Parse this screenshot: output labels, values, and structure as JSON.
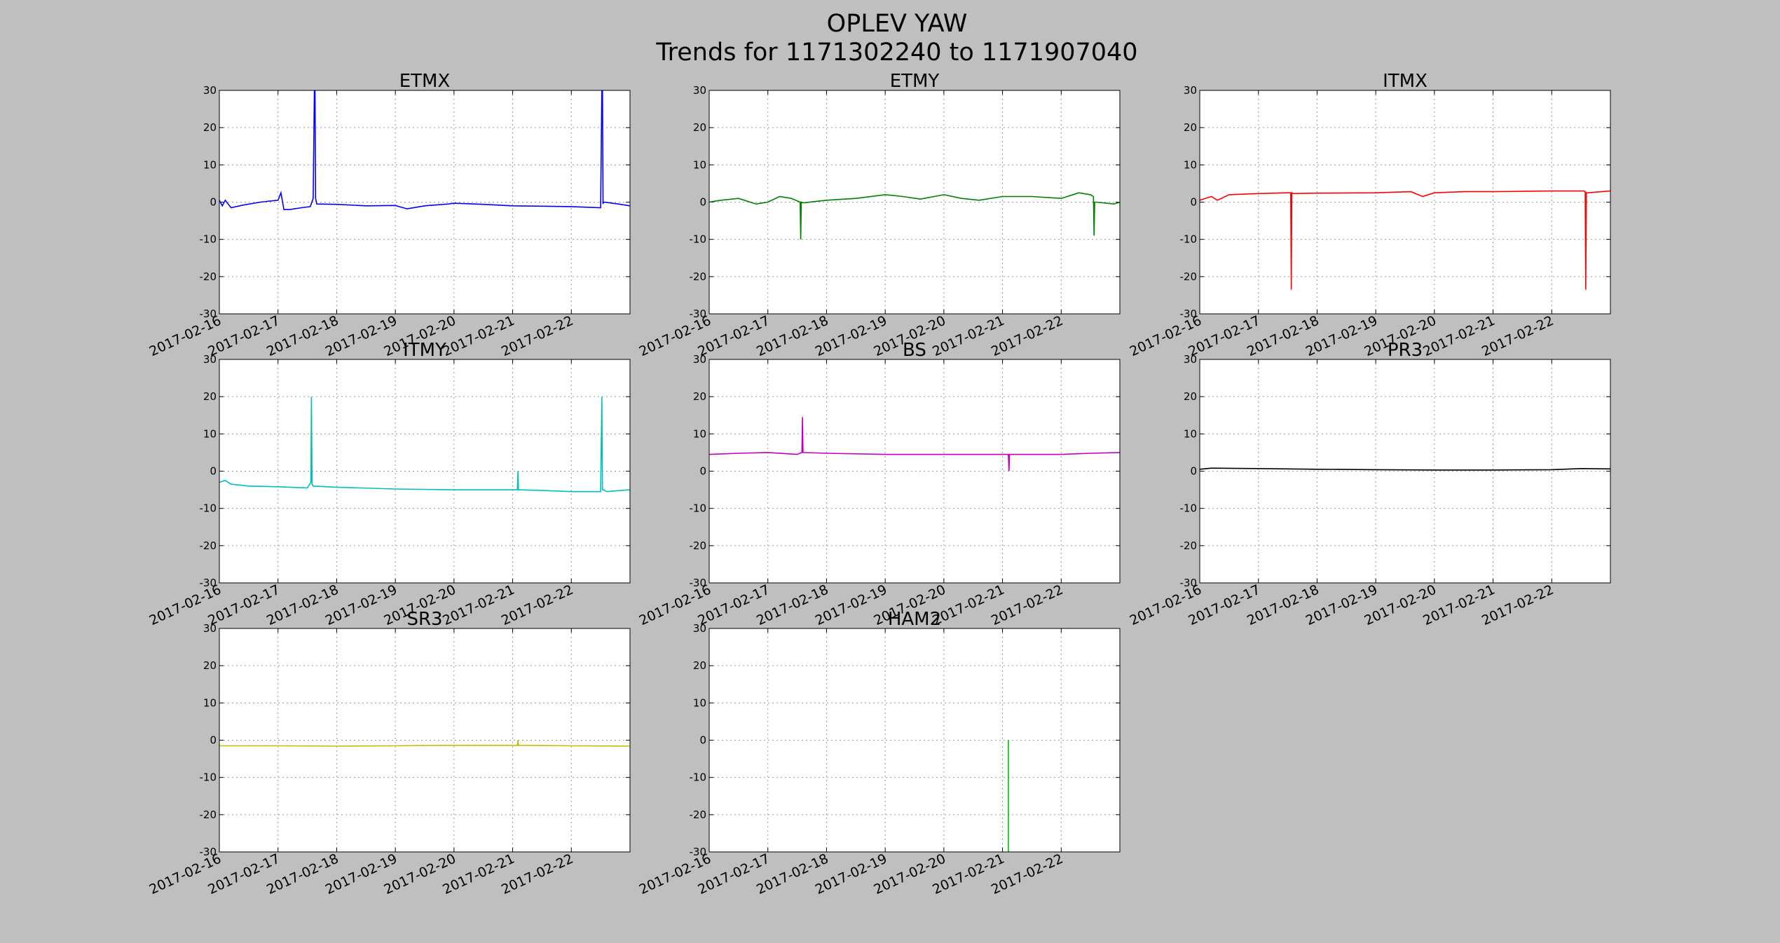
{
  "figure": {
    "title_line1": "OPLEV YAW",
    "title_line2": "Trends for 1171302240 to 1171907040",
    "background": "#bfbfbf"
  },
  "chart_data": [
    {
      "type": "line",
      "title": "ETMX",
      "color": "#0000ff",
      "ylim": [
        -30,
        30
      ],
      "xlim": [
        0,
        7
      ],
      "xlabel": "",
      "ylabel": "",
      "grid": true,
      "yticks": [
        30,
        20,
        10,
        0,
        -10,
        -20,
        -30
      ],
      "xticks": [
        "2017-02-16",
        "2017-02-17",
        "2017-02-18",
        "2017-02-19",
        "2017-02-20",
        "2017-02-21",
        "2017-02-22"
      ],
      "x": [
        0,
        0.05,
        0.1,
        0.2,
        0.4,
        0.7,
        1.0,
        1.05,
        1.1,
        1.2,
        1.4,
        1.55,
        1.6,
        1.62,
        1.63,
        1.64,
        1.66,
        2.0,
        2.5,
        3.0,
        3.2,
        3.5,
        3.9,
        4.0,
        4.5,
        5.0,
        5.5,
        6.0,
        6.5,
        6.52,
        6.53,
        6.54,
        6.56,
        6.8,
        7.0
      ],
      "values": [
        0.5,
        -1.0,
        0.5,
        -1.5,
        -0.8,
        0,
        0.5,
        2.5,
        -2.0,
        -2.0,
        -1.5,
        -1.2,
        1.0,
        30,
        30,
        1.0,
        -0.5,
        -0.6,
        -1.0,
        -0.9,
        -1.8,
        -1.0,
        -0.5,
        -0.3,
        -0.6,
        -1.0,
        -1.1,
        -1.2,
        -1.5,
        30,
        30,
        -0.3,
        0,
        -0.5,
        -1.0
      ]
    },
    {
      "type": "line",
      "title": "ETMY",
      "color": "#008000",
      "ylim": [
        -30,
        30
      ],
      "xlim": [
        0,
        7
      ],
      "xlabel": "",
      "ylabel": "",
      "grid": true,
      "yticks": [
        30,
        20,
        10,
        0,
        -10,
        -20,
        -30
      ],
      "xticks": [
        "2017-02-16",
        "2017-02-17",
        "2017-02-18",
        "2017-02-19",
        "2017-02-20",
        "2017-02-21",
        "2017-02-22"
      ],
      "x": [
        0,
        0.2,
        0.5,
        0.8,
        1.0,
        1.2,
        1.4,
        1.55,
        1.56,
        1.57,
        1.6,
        2.0,
        2.5,
        3.0,
        3.3,
        3.6,
        4.0,
        4.3,
        4.6,
        5.0,
        5.5,
        6.0,
        6.3,
        6.5,
        6.55,
        6.56,
        6.57,
        6.6,
        6.9,
        7.0
      ],
      "values": [
        0,
        0.5,
        1.0,
        -0.5,
        0,
        1.5,
        1.0,
        0,
        -10,
        0,
        -0.2,
        0.5,
        1.0,
        2.0,
        1.5,
        0.8,
        2.0,
        1.0,
        0.5,
        1.5,
        1.5,
        1.0,
        2.5,
        2.0,
        1.5,
        -9.0,
        0,
        0,
        -0.5,
        0
      ]
    },
    {
      "type": "line",
      "title": "ITMX",
      "color": "#ff0000",
      "ylim": [
        -30,
        30
      ],
      "xlim": [
        0,
        7
      ],
      "xlabel": "",
      "ylabel": "",
      "grid": true,
      "yticks": [
        30,
        20,
        10,
        0,
        -10,
        -20,
        -30
      ],
      "xticks": [
        "2017-02-16",
        "2017-02-17",
        "2017-02-18",
        "2017-02-19",
        "2017-02-20",
        "2017-02-21",
        "2017-02-22"
      ],
      "x": [
        0,
        0.2,
        0.3,
        0.5,
        1.0,
        1.5,
        1.55,
        1.56,
        1.57,
        1.6,
        2.0,
        3.0,
        3.6,
        3.8,
        4.0,
        4.5,
        5.0,
        5.5,
        6.0,
        6.55,
        6.57,
        6.58,
        6.59,
        6.61,
        7.0
      ],
      "values": [
        0.5,
        1.5,
        0.5,
        2.0,
        2.3,
        2.5,
        2.5,
        -23.5,
        2.5,
        2.3,
        2.4,
        2.5,
        2.8,
        1.5,
        2.5,
        2.8,
        2.8,
        2.9,
        3.0,
        3.0,
        2.8,
        -23.5,
        2.5,
        2.5,
        3.0
      ]
    },
    {
      "type": "line",
      "title": "ITMY",
      "color": "#00bfbf",
      "ylim": [
        -30,
        30
      ],
      "xlim": [
        0,
        7
      ],
      "xlabel": "",
      "ylabel": "",
      "grid": true,
      "yticks": [
        30,
        20,
        10,
        0,
        -10,
        -20,
        -30
      ],
      "xticks": [
        "2017-02-16",
        "2017-02-17",
        "2017-02-18",
        "2017-02-19",
        "2017-02-20",
        "2017-02-21",
        "2017-02-22"
      ],
      "x": [
        0,
        0.1,
        0.2,
        0.5,
        1.0,
        1.5,
        1.56,
        1.57,
        1.58,
        1.6,
        2.0,
        3.0,
        4.0,
        5.0,
        5.08,
        5.09,
        5.1,
        5.5,
        6.0,
        6.5,
        6.52,
        6.53,
        6.55,
        6.6,
        7.0
      ],
      "values": [
        -3.0,
        -2.5,
        -3.5,
        -4.0,
        -4.2,
        -4.5,
        -3.0,
        20,
        -3.5,
        -4.0,
        -4.3,
        -4.8,
        -5.0,
        -5.0,
        -5.0,
        0,
        -5.0,
        -5.2,
        -5.5,
        -5.5,
        20,
        -5.0,
        -5.0,
        -5.5,
        -5.0
      ]
    },
    {
      "type": "line",
      "title": "BS",
      "color": "#bf00bf",
      "ylim": [
        -30,
        30
      ],
      "xlim": [
        0,
        7
      ],
      "xlabel": "",
      "ylabel": "",
      "grid": true,
      "yticks": [
        30,
        20,
        10,
        0,
        -10,
        -20,
        -30
      ],
      "xticks": [
        "2017-02-16",
        "2017-02-17",
        "2017-02-18",
        "2017-02-19",
        "2017-02-20",
        "2017-02-21",
        "2017-02-22"
      ],
      "x": [
        0,
        0.5,
        1.0,
        1.5,
        1.58,
        1.59,
        1.6,
        2.0,
        3.0,
        4.0,
        5.0,
        5.1,
        5.11,
        5.12,
        5.5,
        6.0,
        6.5,
        7.0
      ],
      "values": [
        4.5,
        4.8,
        5.0,
        4.5,
        5.0,
        14.5,
        5.0,
        4.8,
        4.5,
        4.5,
        4.5,
        4.5,
        0,
        4.5,
        4.5,
        4.5,
        4.8,
        5.0
      ]
    },
    {
      "type": "line",
      "title": "PR3",
      "color": "#000000",
      "ylim": [
        -30,
        30
      ],
      "xlim": [
        0,
        7
      ],
      "xlabel": "",
      "ylabel": "",
      "grid": true,
      "yticks": [
        30,
        20,
        10,
        0,
        -10,
        -20,
        -30
      ],
      "xticks": [
        "2017-02-16",
        "2017-02-17",
        "2017-02-18",
        "2017-02-19",
        "2017-02-20",
        "2017-02-21",
        "2017-02-22"
      ],
      "x": [
        0,
        0.2,
        1.0,
        2.0,
        3.0,
        4.0,
        5.0,
        6.0,
        6.5,
        7.0
      ],
      "values": [
        0.5,
        0.8,
        0.7,
        0.5,
        0.4,
        0.3,
        0.3,
        0.4,
        0.7,
        0.6
      ]
    },
    {
      "type": "line",
      "title": "SR3",
      "color": "#bfbf00",
      "ylim": [
        -30,
        30
      ],
      "xlim": [
        0,
        7
      ],
      "xlabel": "",
      "ylabel": "",
      "grid": true,
      "yticks": [
        30,
        20,
        10,
        0,
        -10,
        -20,
        -30
      ],
      "xticks": [
        "2017-02-16",
        "2017-02-17",
        "2017-02-18",
        "2017-02-19",
        "2017-02-20",
        "2017-02-21",
        "2017-02-22"
      ],
      "x": [
        0,
        1.0,
        2.0,
        3.0,
        4.0,
        5.08,
        5.09,
        5.1,
        6.0,
        7.0
      ],
      "values": [
        -1.5,
        -1.5,
        -1.6,
        -1.5,
        -1.4,
        -1.4,
        0,
        -1.4,
        -1.5,
        -1.6
      ]
    },
    {
      "type": "line",
      "title": "HAM2",
      "color": "#00bf00",
      "ylim": [
        -30,
        30
      ],
      "xlim": [
        0,
        7
      ],
      "xlabel": "",
      "ylabel": "",
      "grid": true,
      "yticks": [
        30,
        20,
        10,
        0,
        -10,
        -20,
        -30
      ],
      "xticks": [
        "2017-02-16",
        "2017-02-17",
        "2017-02-18",
        "2017-02-19",
        "2017-02-20",
        "2017-02-21",
        "2017-02-22"
      ],
      "x": [
        5.1,
        5.1
      ],
      "values": [
        -30,
        0
      ]
    }
  ]
}
